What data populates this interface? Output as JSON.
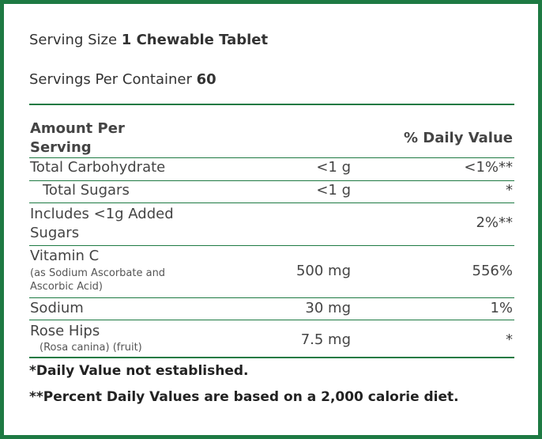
{
  "serving": {
    "size_label": "Serving Size",
    "size_value": "1 Chewable Tablet",
    "per_container_label": "Servings Per Container",
    "per_container_value": "60"
  },
  "table": {
    "header_amount_line1": "Amount Per",
    "header_amount_line2": "Serving",
    "header_dv": "% Daily Value",
    "rows": [
      {
        "name": "Total Carbohydrate",
        "amount": "<1 g",
        "dv": "<1%**"
      },
      {
        "name": "Total Sugars",
        "amount": "<1 g",
        "dv": "*"
      },
      {
        "name_line1": "Includes <1g Added",
        "name_line2": "Sugars",
        "amount": "",
        "dv": "2%**"
      },
      {
        "name": "Vitamin C",
        "note_line1": "(as Sodium Ascorbate and",
        "note_line2": "Ascorbic Acid)",
        "amount": "500 mg",
        "dv": "556%"
      },
      {
        "name": "Sodium",
        "amount": "30 mg",
        "dv": "1%"
      },
      {
        "name": "Rose Hips",
        "note": "(Rosa canina) (fruit)",
        "amount": "7.5 mg",
        "dv": "*"
      }
    ]
  },
  "footnotes": {
    "dv_not_established": "*Daily Value not established.",
    "percent_basis": "**Percent Daily Values are based on a 2,000 calorie diet."
  },
  "colors": {
    "border": "#1e7a43",
    "text": "#333333"
  }
}
